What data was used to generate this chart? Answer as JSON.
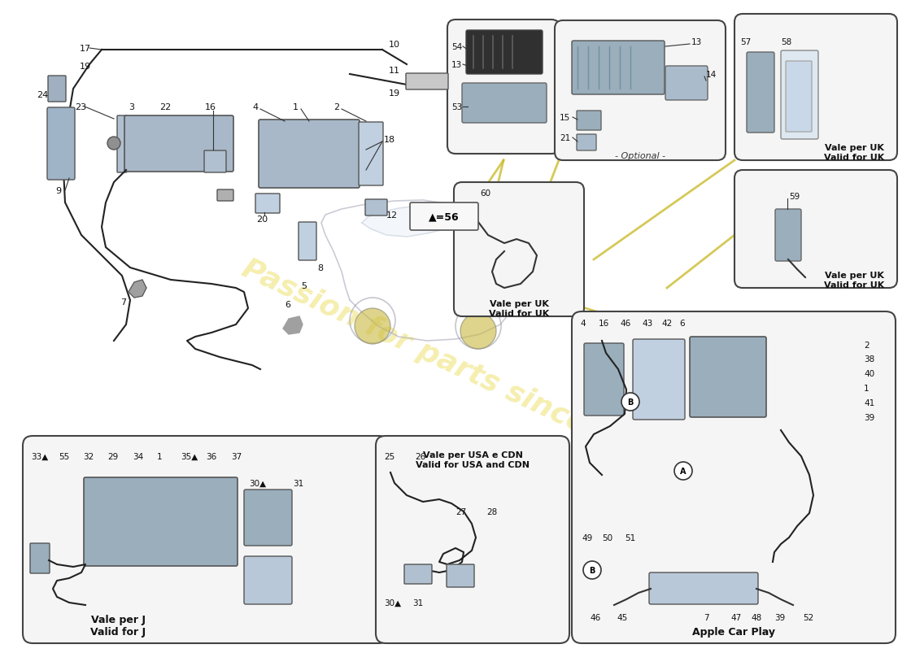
{
  "background_color": "#ffffff",
  "watermark_text": "Passion for parts since 1985",
  "watermark_color": "#e8d840",
  "watermark_alpha": 0.42,
  "note_symbol": "▲=56"
}
